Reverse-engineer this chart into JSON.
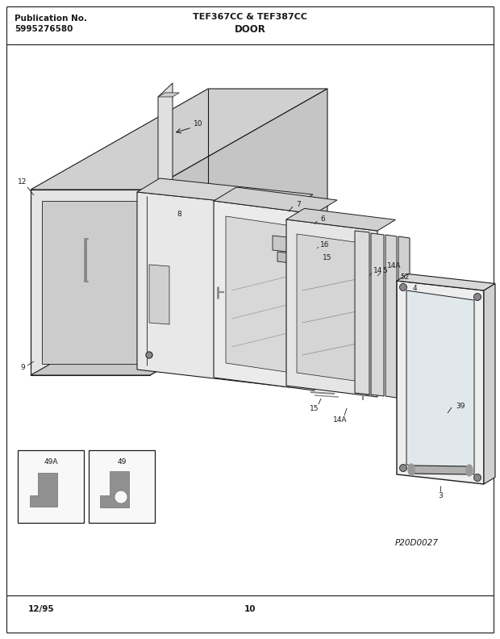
{
  "title_left_line1": "Publication No.",
  "title_left_line2": "5995276580",
  "title_center_top": "TEF367CC & TEF387CC",
  "title_center_bottom": "DOOR",
  "footer_left": "12/95",
  "footer_center": "10",
  "diagram_code": "P20D0027",
  "bg_color": "#ffffff",
  "lc": "#1a1a1a"
}
